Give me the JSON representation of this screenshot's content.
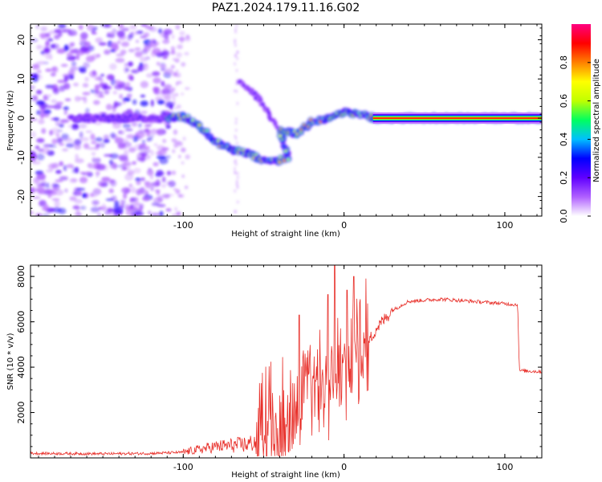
{
  "figure": {
    "title": "PAZ1.2024.179.11.16.G02"
  },
  "chart_data": [
    {
      "type": "heatmap",
      "xlabel": "Height of straight line (km)",
      "ylabel": "Frequency (Hz)",
      "xlim": [
        -195,
        123
      ],
      "ylim": [
        -25,
        24
      ],
      "x_ticks": [
        -100,
        0,
        100
      ],
      "y_ticks": [
        -20,
        -10,
        0,
        10,
        20
      ],
      "colorbar": {
        "label": "Normalized spectral amplitude",
        "range": [
          0,
          1
        ],
        "ticks": [
          0.0,
          0.2,
          0.4,
          0.6,
          0.8
        ],
        "tick_labels": [
          "0.0",
          "0.2",
          "0.4",
          "0.6",
          "0.8"
        ],
        "colormap": [
          "#ffffff",
          "#b060ff",
          "#6000ff",
          "#0000ff",
          "#00c0ff",
          "#00ff60",
          "#c0ff00",
          "#ffff00",
          "#ff8000",
          "#ff0000",
          "#ff0080"
        ]
      },
      "ridge": [
        {
          "x": -170,
          "y": 0
        },
        {
          "x": -150,
          "y": 0
        },
        {
          "x": -130,
          "y": 0
        },
        {
          "x": -110,
          "y": 0
        },
        {
          "x": -100,
          "y": 0.5
        },
        {
          "x": -90,
          "y": -2
        },
        {
          "x": -80,
          "y": -6
        },
        {
          "x": -70,
          "y": -8
        },
        {
          "x": -60,
          "y": -9
        },
        {
          "x": -50,
          "y": -11
        },
        {
          "x": -42,
          "y": -11
        },
        {
          "x": -35,
          "y": -10
        },
        {
          "x": -40,
          "y": -3
        },
        {
          "x": -30,
          "y": -4
        },
        {
          "x": -20,
          "y": -1
        },
        {
          "x": -10,
          "y": 0
        },
        {
          "x": 0,
          "y": 1.5
        },
        {
          "x": 10,
          "y": 1
        },
        {
          "x": 20,
          "y": 0
        },
        {
          "x": 60,
          "y": 0
        },
        {
          "x": 100,
          "y": 0
        },
        {
          "x": 123,
          "y": 0
        }
      ],
      "branch": [
        {
          "x": -65,
          "y": 9
        },
        {
          "x": -55,
          "y": 6
        },
        {
          "x": -48,
          "y": 2
        },
        {
          "x": -42,
          "y": -2
        }
      ]
    },
    {
      "type": "line",
      "xlabel": "Height of straight line (km)",
      "ylabel": "SNR (10 * v/v)",
      "xlim": [
        -195,
        123
      ],
      "ylim": [
        0,
        8500
      ],
      "x_ticks": [
        -100,
        0,
        100
      ],
      "y_ticks": [
        2000,
        4000,
        6000,
        8000
      ],
      "color": "#e8302a",
      "envelope": [
        {
          "x": -195,
          "y": 200
        },
        {
          "x": -150,
          "y": 180
        },
        {
          "x": -120,
          "y": 200
        },
        {
          "x": -100,
          "y": 250
        },
        {
          "x": -80,
          "y": 500
        },
        {
          "x": -60,
          "y": 600
        },
        {
          "x": -50,
          "y": 800
        },
        {
          "x": -40,
          "y": 1600
        },
        {
          "x": -30,
          "y": 2400
        },
        {
          "x": -20,
          "y": 2800
        },
        {
          "x": -10,
          "y": 3200
        },
        {
          "x": 0,
          "y": 3700
        },
        {
          "x": 10,
          "y": 4500
        },
        {
          "x": 20,
          "y": 5700
        },
        {
          "x": 30,
          "y": 6500
        },
        {
          "x": 40,
          "y": 6900
        },
        {
          "x": 60,
          "y": 7000
        },
        {
          "x": 80,
          "y": 6900
        },
        {
          "x": 100,
          "y": 6800
        },
        {
          "x": 108,
          "y": 6750
        },
        {
          "x": 109,
          "y": 3850
        },
        {
          "x": 123,
          "y": 3800
        }
      ],
      "peaks": [
        {
          "x": -6,
          "y": 8500
        },
        {
          "x": 6,
          "y": 8000
        },
        {
          "x": -10,
          "y": 7200
        },
        {
          "x": -28,
          "y": 6300
        },
        {
          "x": 2,
          "y": 7400
        }
      ]
    }
  ]
}
